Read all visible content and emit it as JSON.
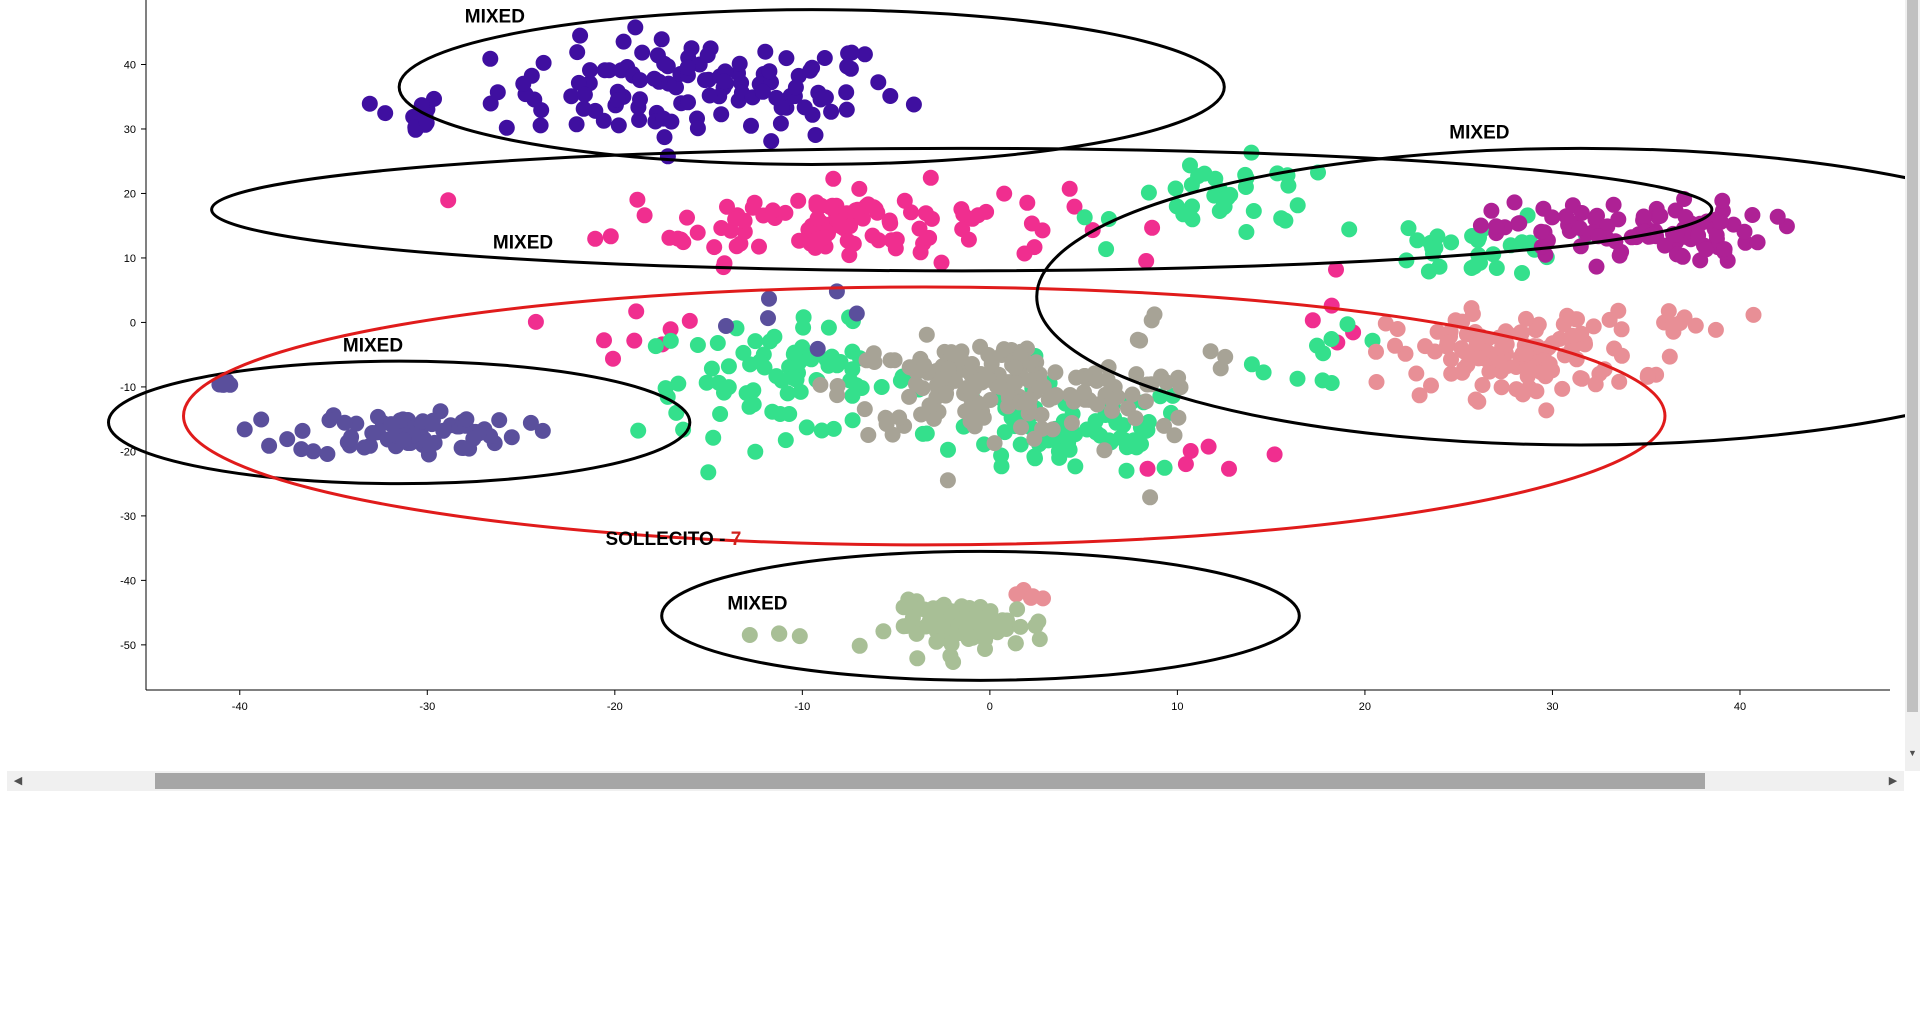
{
  "chart_data": {
    "type": "scatter",
    "title": "",
    "xlabel": "",
    "ylabel": "",
    "xlim": [
      -45,
      48
    ],
    "ylim": [
      -57,
      50
    ],
    "x_ticks": [
      -40,
      -30,
      -20,
      -10,
      0,
      10,
      20,
      30,
      40
    ],
    "y_ticks": [
      40,
      30,
      20,
      10,
      0,
      -10,
      -20,
      -30,
      -40,
      -50
    ],
    "grid": false,
    "legend": "none",
    "annotations": [
      {
        "text": "MIXED",
        "x": -28,
        "y": 46.5
      },
      {
        "text": "MIXED",
        "x": -26.5,
        "y": 11.5
      },
      {
        "text": "MIXED",
        "x": -34.5,
        "y": -4.5
      },
      {
        "text": "SOLLECITO - ",
        "accent": "7",
        "x": -20.5,
        "y": -34.5
      },
      {
        "text": "MIXED",
        "x": -14,
        "y": -44.5
      },
      {
        "text": "MIXED",
        "x": 24.5,
        "y": 28.5
      }
    ],
    "highlight_ellipses": [
      {
        "cx": -9.5,
        "cy": 36.5,
        "rx": 22,
        "ry": 12,
        "color": "#000000"
      },
      {
        "cx": -1.5,
        "cy": 17.5,
        "rx": 40,
        "ry": 9.5,
        "color": "#000000"
      },
      {
        "cx": -31.5,
        "cy": -15.5,
        "rx": 15.5,
        "ry": 9.5,
        "color": "#000000"
      },
      {
        "cx": -3.5,
        "cy": -14.5,
        "rx": 39.5,
        "ry": 20,
        "color": "#e01b1b"
      },
      {
        "cx": -0.5,
        "cy": -45.5,
        "rx": 17,
        "ry": 10,
        "color": "#000000"
      },
      {
        "cx": 31.5,
        "cy": 4,
        "rx": 29,
        "ry": 23,
        "color": "#000000"
      }
    ],
    "series": [
      {
        "color": "#3f0fa0",
        "clusters": [
          [
            -15.5,
            36,
            9,
            6.5,
            120
          ],
          [
            -31,
            32,
            1.5,
            3,
            12
          ]
        ]
      },
      {
        "color": "#f02e8f",
        "clusters": [
          [
            -8,
            15.5,
            10,
            5,
            110
          ],
          [
            -19,
            -0.5,
            3,
            4,
            8
          ],
          [
            19,
            2,
            2,
            6,
            5
          ],
          [
            12,
            -22,
            3,
            3,
            6
          ]
        ]
      },
      {
        "color": "#34e08c",
        "clusters": [
          [
            -11,
            -9,
            6.5,
            7,
            80
          ],
          [
            4,
            -17,
            6,
            6,
            75
          ],
          [
            13,
            19,
            5,
            5,
            35
          ],
          [
            26,
            12,
            4,
            4,
            30
          ],
          [
            18,
            -6,
            3,
            4,
            10
          ]
        ]
      },
      {
        "color": "#a7a396",
        "clusters": [
          [
            0,
            -10,
            6.5,
            6,
            165
          ],
          [
            9,
            -10,
            4,
            10,
            20
          ]
        ]
      },
      {
        "color": "#5a4f9c",
        "clusters": [
          [
            -31,
            -17,
            5,
            3,
            75
          ],
          [
            -41,
            -9.5,
            0.8,
            0.3,
            6
          ],
          [
            -12,
            0.5,
            4,
            4,
            6
          ]
        ]
      },
      {
        "color": "#ae2195",
        "clusters": [
          [
            34,
            14,
            6,
            4,
            95
          ]
        ]
      },
      {
        "color": "#e88f96",
        "clusters": [
          [
            28,
            -5,
            5.5,
            5.5,
            120
          ],
          [
            36,
            -1,
            3,
            3,
            12
          ],
          [
            2,
            -42,
            1.5,
            1.5,
            6
          ]
        ]
      },
      {
        "color": "#a8bf96",
        "clusters": [
          [
            -1,
            -47,
            3.5,
            3,
            80
          ],
          [
            -11,
            -48.5,
            0.8,
            0.3,
            4
          ]
        ]
      }
    ]
  }
}
